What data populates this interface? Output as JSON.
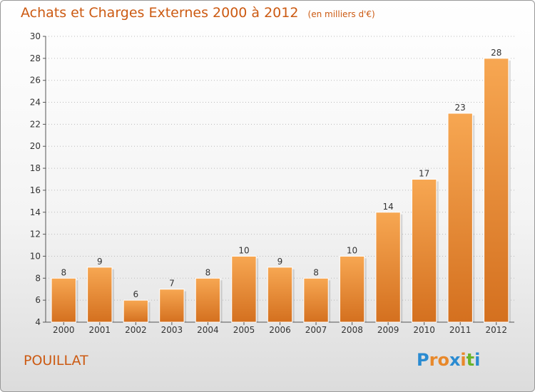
{
  "title": "Achats et Charges Externes 2000 à 2012",
  "unit_note": "(en milliers d'€)",
  "commune": "POUILLAT",
  "logo": {
    "letters": [
      "P",
      "r",
      "o",
      "x",
      "i",
      "t",
      "i"
    ],
    "colors": [
      "#2a8bd1",
      "#e8882a",
      "#e8882a",
      "#2a8bd1",
      "#e8882a",
      "#69b42c",
      "#2a8bd1"
    ]
  },
  "colors": {
    "title": "#cc5a12",
    "bar_light": "#f7a752",
    "bar_dark": "#d4701f",
    "axis": "#555555",
    "grid": "#bbbbbb"
  },
  "chart_data": {
    "type": "bar",
    "title": "Achats et Charges Externes 2000 à 2012",
    "categories": [
      "2000",
      "2001",
      "2002",
      "2003",
      "2004",
      "2005",
      "2006",
      "2007",
      "2008",
      "2009",
      "2010",
      "2011",
      "2012"
    ],
    "values": [
      8,
      9,
      6,
      7,
      8,
      10,
      9,
      8,
      10,
      14,
      17,
      23,
      28
    ],
    "ylim": [
      4,
      30
    ],
    "yticks": [
      4,
      6,
      8,
      10,
      12,
      14,
      16,
      18,
      20,
      22,
      24,
      26,
      28,
      30
    ],
    "xlabel": "",
    "ylabel": "",
    "grid": "horizontal dotted"
  }
}
